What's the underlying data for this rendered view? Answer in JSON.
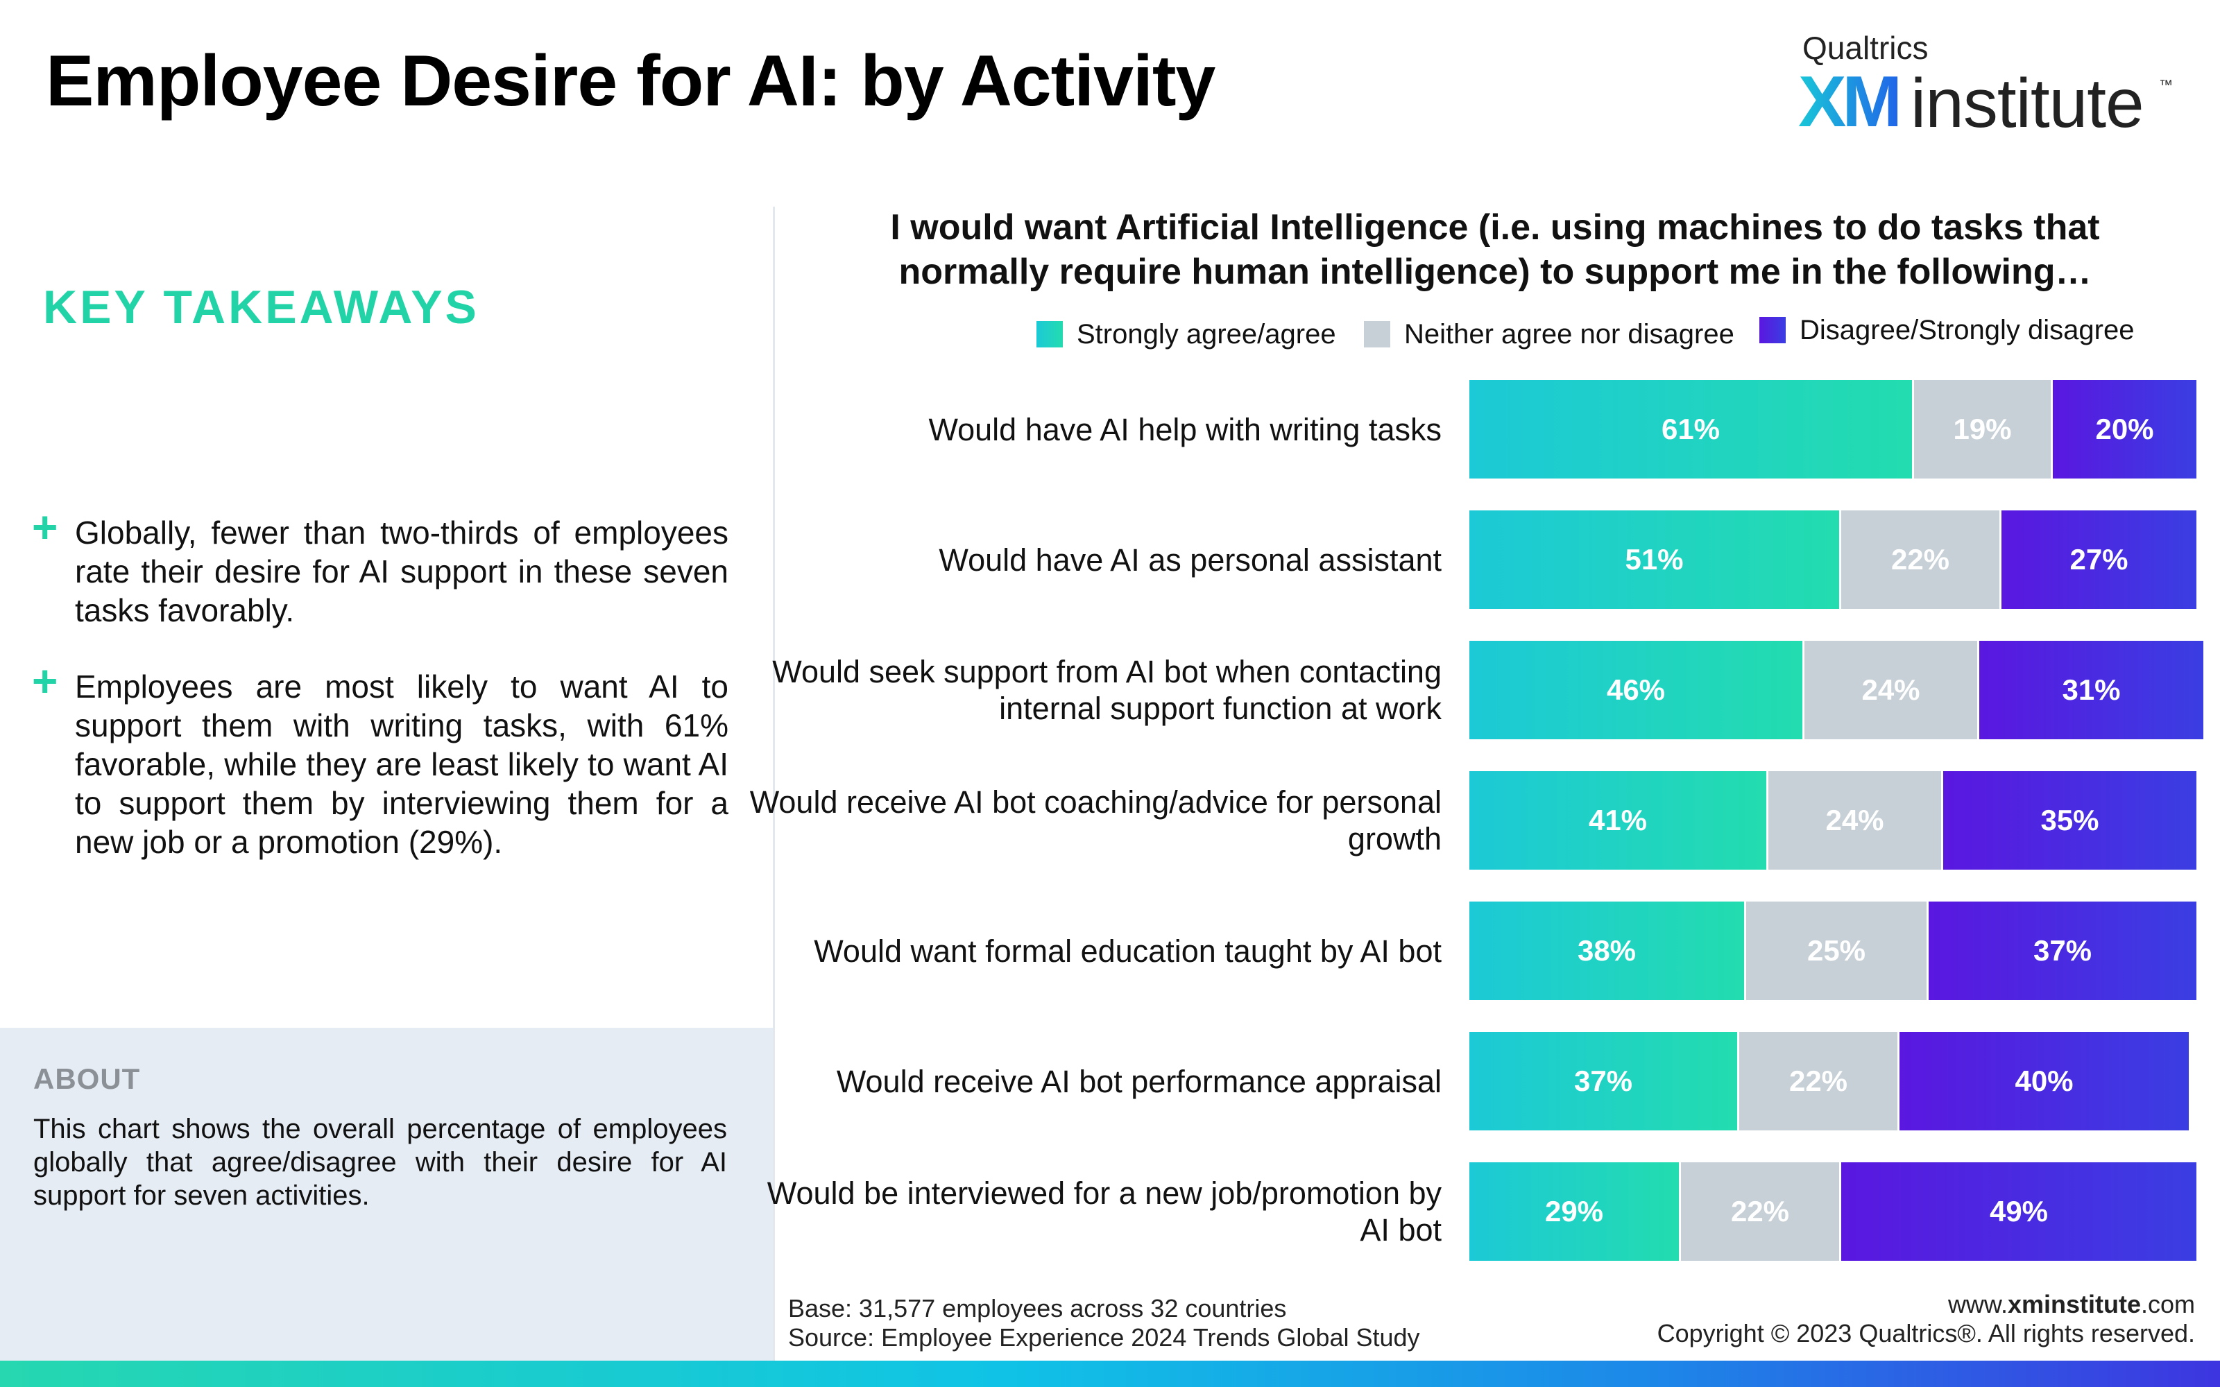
{
  "header": {
    "title": "Employee Desire for AI: by Activity",
    "logo": {
      "top": "Qualtrics",
      "xm": "XM",
      "institute": "institute",
      "tm": "™"
    }
  },
  "takeaways": {
    "heading": "KEY TAKEAWAYS",
    "items": [
      {
        "bullet": "+",
        "text": "Globally, fewer than two-thirds of employees rate their desire for AI support in these seven tasks favorably."
      },
      {
        "bullet": "+",
        "text": "Employees are most likely to want AI to support them with writing tasks, with 61% favorable, while they are least likely to want AI to support them by interviewing them for a new job or a promotion (29%)."
      }
    ]
  },
  "about": {
    "heading": "ABOUT",
    "text": "This chart shows the overall percentage of employees globally that agree/disagree with their desire for AI support for seven activities."
  },
  "footer": {
    "base": "Base: 31,577 employees across 32 countries",
    "source": "Source: Employee Experience 2024 Trends Global Study",
    "url_prefix": "www.",
    "url_bold": "xminstitute",
    "url_suffix": ".com",
    "copyright": "Copyright © 2023 Qualtrics®. All rights reserved."
  },
  "colors": {
    "accent_green": "#22d3a7",
    "agree": "#1ccfc6",
    "neither": "#c7d0d6",
    "disagree": "#4a2ae1"
  },
  "chart_data": {
    "type": "bar",
    "orientation": "horizontal",
    "stacked": true,
    "title": "I would want Artificial Intelligence (i.e. using machines to do tasks that normally require human intelligence) to support me in the following…",
    "xlim": [
      0,
      100
    ],
    "unit": "%",
    "legend_position": "top",
    "categories": [
      "Would have AI help with writing tasks",
      "Would have AI as personal assistant",
      "Would seek support from AI bot when contacting internal support function at work",
      "Would receive AI bot coaching/advice for personal growth",
      "Would want formal education taught by AI bot",
      "Would receive AI bot performance appraisal",
      "Would be interviewed for a new job/promotion by AI bot"
    ],
    "series": [
      {
        "name": "Strongly agree/agree",
        "values": [
          61,
          51,
          46,
          41,
          38,
          37,
          29
        ]
      },
      {
        "name": "Neither agree nor disagree",
        "values": [
          19,
          22,
          24,
          24,
          25,
          22,
          22
        ]
      },
      {
        "name": "Disagree/Strongly disagree",
        "values": [
          20,
          27,
          31,
          35,
          37,
          40,
          49
        ]
      }
    ]
  }
}
